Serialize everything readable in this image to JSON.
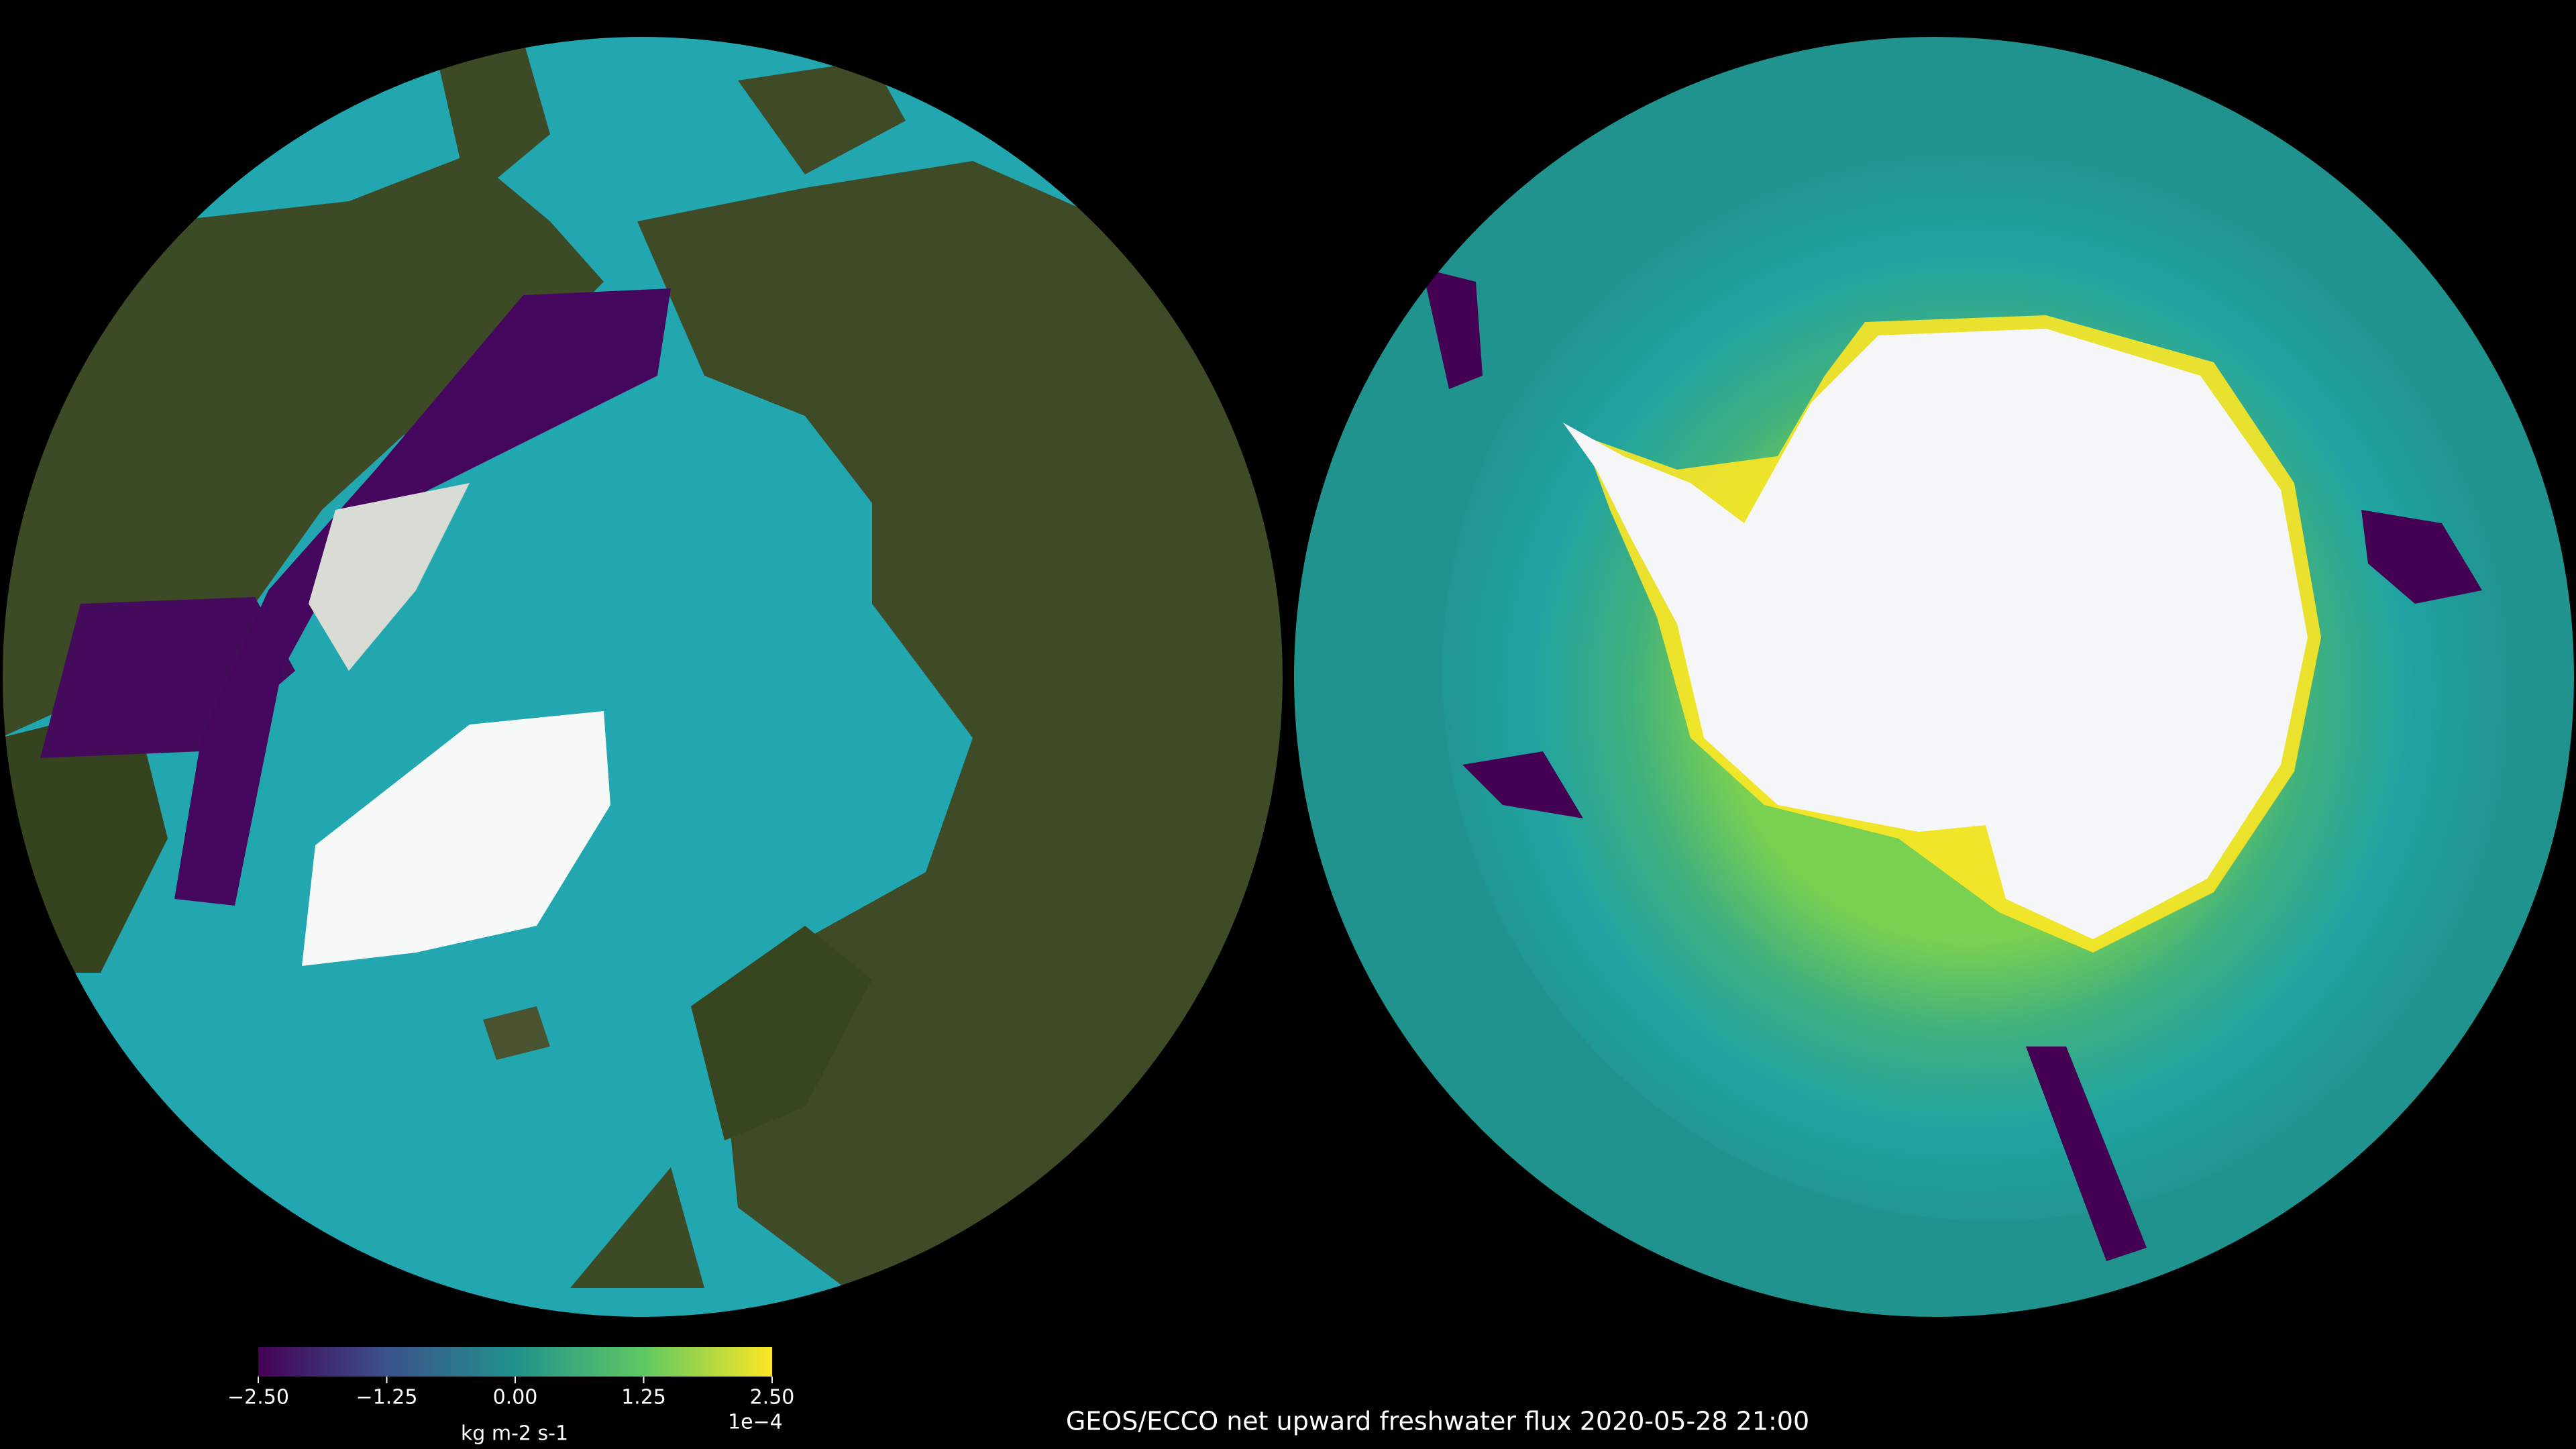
{
  "title": "GEOS/ECCO net upward freshwater flux   2020-05-28 21:00",
  "colorbar": {
    "range": [
      -2.5,
      2.5
    ],
    "ticks": [
      {
        "value": -2.5,
        "label": "−2.50"
      },
      {
        "value": -1.25,
        "label": "−1.25"
      },
      {
        "value": 0,
        "label": "0.00"
      },
      {
        "value": 1.25,
        "label": "1.25"
      },
      {
        "value": 2.5,
        "label": "2.50"
      }
    ],
    "offset_label": "1e−4",
    "label": "kg m-2 s-1",
    "colors": [
      "#440154",
      "#3b528b",
      "#21918c",
      "#5ec962",
      "#fde725"
    ]
  }
}
